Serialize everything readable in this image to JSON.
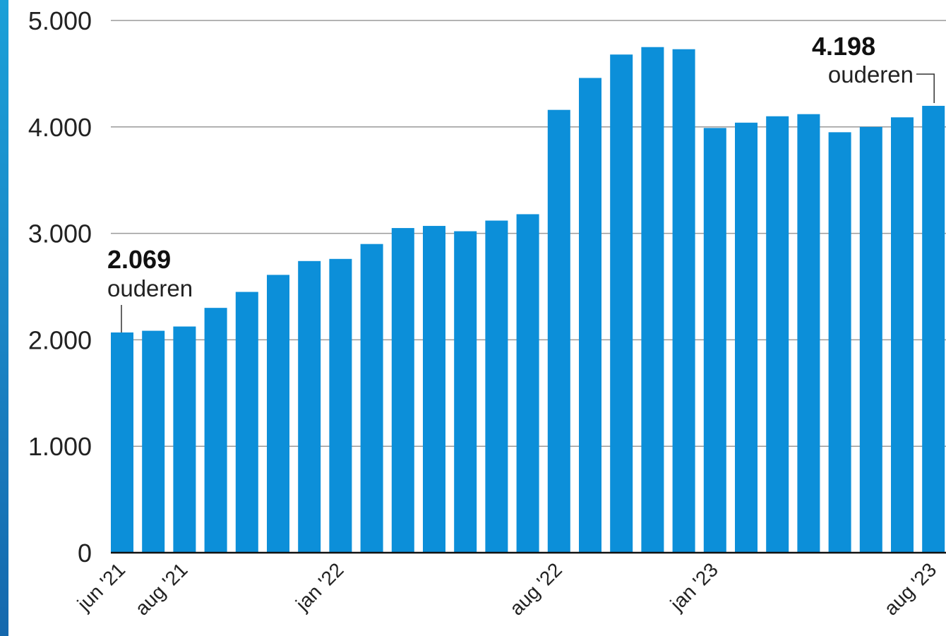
{
  "chart_data": {
    "type": "bar",
    "categories": [
      "jun '21",
      "jul '21",
      "aug '21",
      "sep '21",
      "okt '21",
      "nov '21",
      "dec '21",
      "jan '22",
      "feb '22",
      "mrt '22",
      "apr '22",
      "mei '22",
      "jun '22",
      "jul '22",
      "aug '22",
      "sep '22",
      "okt '22",
      "nov '22",
      "dec '22",
      "jan '23",
      "feb '23",
      "mrt '23",
      "apr '23",
      "mei '23",
      "jun '23",
      "jul '23",
      "aug '23"
    ],
    "values": [
      2069,
      2085,
      2125,
      2300,
      2450,
      2610,
      2740,
      2760,
      2900,
      3050,
      3070,
      3020,
      3120,
      3180,
      4160,
      4460,
      4680,
      4750,
      4730,
      3990,
      4040,
      4100,
      4120,
      3950,
      4000,
      4090,
      4198
    ],
    "x_tick_labels": [
      "jun '21",
      "aug '21",
      "jan '22",
      "aug '22",
      "jan '23",
      "aug '23"
    ],
    "y_ticks": [
      "0",
      "1.000",
      "2.000",
      "3.000",
      "4.000",
      "5.000"
    ],
    "ylim": [
      0,
      5000
    ],
    "grid": true,
    "bar_color": "#0c8fd9",
    "annotations": [
      {
        "value_label": "2.069",
        "text": "ouderen",
        "category": "jun '21"
      },
      {
        "value_label": "4.198",
        "text": "ouderen",
        "category": "aug '23"
      }
    ],
    "title": "",
    "xlabel": "",
    "ylabel": ""
  }
}
